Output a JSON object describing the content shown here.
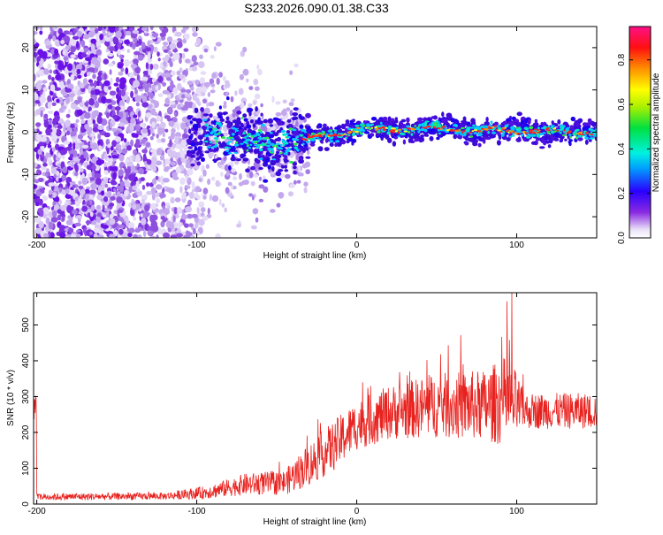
{
  "title": "S233.2026.090.01.38.C33",
  "chart_data": [
    {
      "type": "heatmap",
      "xlabel": "Height of straight line (km)",
      "ylabel": "Frequency (Hz)",
      "xlim": [
        -202,
        150
      ],
      "ylim": [
        -25,
        25
      ],
      "xticks": [
        -200,
        -100,
        0,
        100
      ],
      "yticks": [
        -20,
        -10,
        0,
        10,
        20
      ],
      "colorbar": {
        "label": "Normalized spectral amplitude",
        "range": [
          0,
          0.95
        ],
        "ticks": [
          0.0,
          0.2,
          0.4,
          0.6,
          0.8
        ],
        "tick_labels": [
          "0.0",
          "0.2",
          "0.4",
          "0.6",
          "0.8"
        ]
      },
      "ridge": {
        "description_points": [
          {
            "x": -100,
            "y": 0.0
          },
          {
            "x": -70,
            "y": -2.0
          },
          {
            "x": -50,
            "y": -3.0
          },
          {
            "x": -30,
            "y": -1.5
          },
          {
            "x": 0,
            "y": 0.5
          },
          {
            "x": 40,
            "y": 1.0
          },
          {
            "x": 80,
            "y": 0.5
          },
          {
            "x": 150,
            "y": 0.0
          }
        ]
      }
    },
    {
      "type": "line",
      "xlabel": "Height of straight line (km)",
      "ylabel": "SNR (10 * v/v)",
      "xlim": [
        -202,
        150
      ],
      "ylim": [
        0,
        590
      ],
      "xticks": [
        -200,
        -100,
        0,
        100
      ],
      "yticks": [
        0,
        100,
        200,
        300,
        400,
        500
      ],
      "series": [
        {
          "name": "SNR",
          "color": "#e8231f",
          "envelope": [
            {
              "x": -200,
              "mean": 20,
              "noise": 10
            },
            {
              "x": -120,
              "mean": 22,
              "noise": 10
            },
            {
              "x": -95,
              "mean": 32,
              "noise": 18
            },
            {
              "x": -70,
              "mean": 55,
              "noise": 30
            },
            {
              "x": -45,
              "mean": 60,
              "noise": 35
            },
            {
              "x": -30,
              "mean": 110,
              "noise": 60
            },
            {
              "x": -15,
              "mean": 160,
              "noise": 70
            },
            {
              "x": 0,
              "mean": 220,
              "noise": 70
            },
            {
              "x": 20,
              "mean": 255,
              "noise": 75
            },
            {
              "x": 50,
              "mean": 275,
              "noise": 90
            },
            {
              "x": 80,
              "mean": 275,
              "noise": 100
            },
            {
              "x": 95,
              "mean": 290,
              "noise": 130
            },
            {
              "x": 105,
              "mean": 260,
              "noise": 50
            },
            {
              "x": 150,
              "mean": 260,
              "noise": 50
            }
          ],
          "peak": {
            "x": 97,
            "y": 590
          }
        }
      ]
    }
  ]
}
